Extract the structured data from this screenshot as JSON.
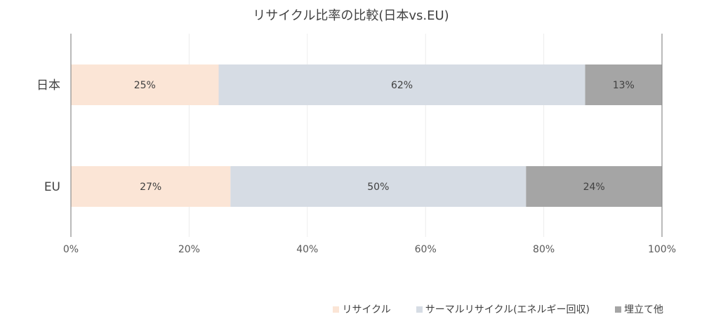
{
  "chart_data": {
    "type": "bar",
    "orientation": "horizontal",
    "stacked": true,
    "title": "リサイクル比率の比較(日本vs.EU)",
    "categories": [
      "日本",
      "EU"
    ],
    "series": [
      {
        "name": "リサイクル",
        "values": [
          25,
          27
        ],
        "labels": [
          "25%",
          "27%"
        ],
        "color": "#fbe5d6"
      },
      {
        "name": "サーマルリサイクル(エネルギー回収)",
        "values": [
          62,
          50
        ],
        "labels": [
          "62%",
          "50%"
        ],
        "color": "#d6dce4"
      },
      {
        "name": "埋立て他",
        "values": [
          13,
          24
        ],
        "labels": [
          "13%",
          "24%"
        ],
        "color": "#a5a5a5"
      }
    ],
    "xlim": [
      0,
      100
    ],
    "xticks": [
      "0%",
      "20%",
      "40%",
      "60%",
      "80%",
      "100%"
    ],
    "grid": true,
    "legend_position": "bottom-right"
  }
}
